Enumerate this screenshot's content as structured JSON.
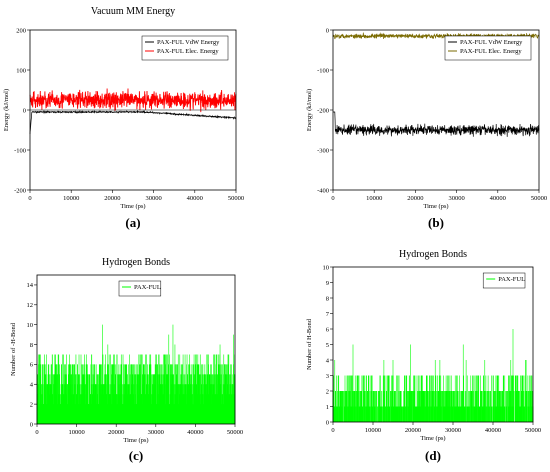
{
  "colors": {
    "black": "#000000",
    "red": "#ff0000",
    "green": "#00ff00",
    "dark_red": "#b22222",
    "olive": "#7a6a00",
    "pink": "#ff66cc",
    "cyan": "#bfefff"
  },
  "panel_labels": [
    "(a)",
    "(b)",
    "(c)",
    "(d)"
  ],
  "chart_data": [
    {
      "type": "line",
      "title": "Vacuum MM Energy",
      "xlabel": "Time (ps)",
      "ylabel": "Energy (kJ/mol)",
      "xlim": [
        0,
        50000
      ],
      "ylim": [
        -200,
        200
      ],
      "x_ticks": [
        "0",
        "10000",
        "20000",
        "30000",
        "40000",
        "50000"
      ],
      "y_ticks": [
        "-200",
        "-100",
        "0",
        "100",
        "200"
      ],
      "legend_position": "top-right",
      "series": [
        {
          "name": "PAX-FUL VdW Energy",
          "color": "#000000",
          "summary": {
            "start": -60,
            "level": -5,
            "late": -20
          }
        },
        {
          "name": "PAX-FUL Elec. Energy",
          "color": "#ff0000",
          "summary": {
            "mean": 25,
            "spread_min": -50,
            "spread_max": 95
          }
        }
      ]
    },
    {
      "type": "line",
      "title": "",
      "xlabel": "Time (ps)",
      "ylabel": "Energy (kJ/mol)",
      "xlim": [
        0,
        50000
      ],
      "ylim": [
        -400,
        0
      ],
      "x_ticks": [
        "0",
        "10000",
        "20000",
        "30000",
        "40000",
        "50000"
      ],
      "y_ticks": [
        "-400",
        "-300",
        "-200",
        "-100",
        "0"
      ],
      "legend_position": "top-right",
      "series": [
        {
          "name": "PAX-FUL VdW Energy",
          "color": "#000000",
          "summary": {
            "start": -10,
            "mean": -250,
            "spread_min": -295,
            "spread_max": -205
          }
        },
        {
          "name": "PAX-FUL Elec. Energy",
          "color": "#7a6a00",
          "summary": {
            "mean": -15,
            "spread_min": -35,
            "spread_max": 0
          }
        }
      ]
    },
    {
      "type": "bar",
      "title": "Hydrogen Bonds",
      "xlabel": "Time (ps)",
      "ylabel": "Number of -H-Bond",
      "xlim": [
        0,
        50000
      ],
      "ylim": [
        0,
        15
      ],
      "x_ticks": [
        "0",
        "10000",
        "20000",
        "30000",
        "40000",
        "50000"
      ],
      "y_ticks": [
        "0",
        "2",
        "4",
        "6",
        "8",
        "10",
        "12",
        "14"
      ],
      "legend_position": "top-left",
      "series": [
        {
          "name": "PAX-FUL",
          "color": "#00ff00",
          "summary": {
            "typical_min": 2,
            "typical_max": 7,
            "peak": 10
          }
        }
      ]
    },
    {
      "type": "bar",
      "title": "Hydrogen Bonds",
      "xlabel": "Time (ps)",
      "ylabel": "Number of H-Bond",
      "xlim": [
        0,
        50000
      ],
      "ylim": [
        0,
        10
      ],
      "x_ticks": [
        "0",
        "10000",
        "20000",
        "30000",
        "40000",
        "50000"
      ],
      "y_ticks": [
        "0",
        "1",
        "2",
        "3",
        "4",
        "5",
        "6",
        "7",
        "8",
        "9",
        "10"
      ],
      "legend_position": "top-right",
      "series": [
        {
          "name": "PAX-FUL",
          "color": "#00ff00",
          "summary": {
            "typical_min": 0,
            "typical_max": 3,
            "peak": 6
          }
        }
      ]
    }
  ]
}
